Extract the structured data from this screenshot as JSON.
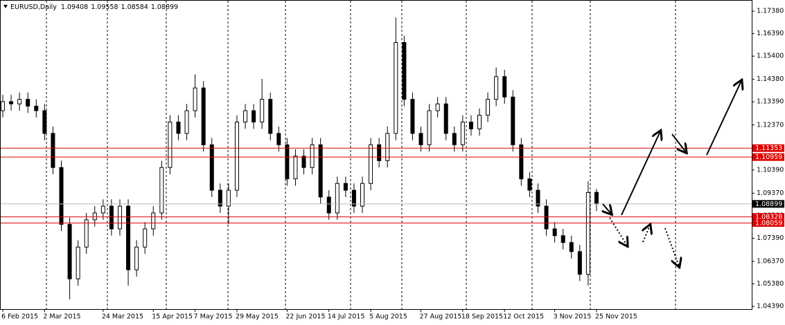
{
  "chart_data": {
    "type": "candlestick",
    "title": "EURUSD,Daily",
    "ylim": [
      1.0427,
      1.1787
    ],
    "yticks": [
      {
        "value": 1.1738,
        "label": "1.17380"
      },
      {
        "value": 1.1639,
        "label": "1.16390"
      },
      {
        "value": 1.154,
        "label": "1.15400"
      },
      {
        "value": 1.1438,
        "label": "1.14380"
      },
      {
        "value": 1.1339,
        "label": "1.13390"
      },
      {
        "value": 1.1237,
        "label": "1.12370"
      },
      {
        "value": 1.1138,
        "label": "1.11380"
      },
      {
        "value": 1.1039,
        "label": "1.10390"
      },
      {
        "value": 1.0937,
        "label": "1.09370"
      },
      {
        "value": 1.0838,
        "label": "1.08380"
      },
      {
        "value": 1.0739,
        "label": "1.07390"
      },
      {
        "value": 1.0637,
        "label": "1.06370"
      },
      {
        "value": 1.0538,
        "label": "1.05380"
      },
      {
        "value": 1.0439,
        "label": "1.04390"
      }
    ],
    "categories": [
      "6 Feb 2015",
      null,
      null,
      null,
      null,
      "2 Mar 2015",
      null,
      null,
      null,
      null,
      null,
      null,
      "24 Mar 2015",
      null,
      null,
      null,
      null,
      null,
      "15 Apr 2015",
      null,
      null,
      null,
      null,
      "7 May 2015",
      null,
      null,
      null,
      null,
      "29 May 2015",
      null,
      null,
      null,
      null,
      null,
      "22 Jun 2015",
      null,
      null,
      null,
      null,
      "14 Jul 2015",
      null,
      null,
      null,
      null,
      "5 Aug 2015",
      null,
      null,
      null,
      null,
      null,
      "27 Aug 2015",
      null,
      null,
      null,
      null,
      "18 Sep 2015",
      null,
      null,
      null,
      null,
      "12 Oct 2015",
      null,
      null,
      null,
      null,
      null,
      "3 Nov 2015",
      null,
      null,
      null,
      null,
      "25 Nov 2015"
    ],
    "open": [
      1.13,
      1.134,
      1.133,
      1.135,
      1.132,
      1.13,
      1.12,
      1.105,
      1.08,
      1.056,
      1.07,
      1.082,
      1.085,
      1.088,
      1.078,
      1.088,
      1.06,
      1.07,
      1.078,
      1.085,
      1.105,
      1.125,
      1.12,
      1.13,
      1.14,
      1.115,
      1.095,
      1.088,
      1.095,
      1.125,
      1.13,
      1.125,
      1.135,
      1.12,
      1.115,
      1.1,
      1.11,
      1.105,
      1.115,
      1.092,
      1.085,
      1.098,
      1.095,
      1.088,
      1.098,
      1.115,
      1.108,
      1.12,
      1.16,
      1.135,
      1.12,
      1.115,
      1.13,
      1.133,
      1.12,
      1.115,
      1.125,
      1.122,
      1.128,
      1.135,
      1.145,
      1.136,
      1.115,
      1.1,
      1.095,
      1.088,
      1.078,
      1.075,
      1.072,
      1.068,
      1.058,
      1.09408
    ],
    "high": [
      1.137,
      1.137,
      1.138,
      1.138,
      1.135,
      1.133,
      1.123,
      1.108,
      1.083,
      1.073,
      1.085,
      1.088,
      1.091,
      1.091,
      1.091,
      1.091,
      1.073,
      1.081,
      1.088,
      1.108,
      1.128,
      1.128,
      1.133,
      1.146,
      1.143,
      1.118,
      1.098,
      1.098,
      1.128,
      1.133,
      1.133,
      1.144,
      1.138,
      1.123,
      1.118,
      1.113,
      1.113,
      1.118,
      1.118,
      1.095,
      1.101,
      1.101,
      1.098,
      1.101,
      1.118,
      1.118,
      1.123,
      1.171,
      1.163,
      1.138,
      1.123,
      1.133,
      1.136,
      1.136,
      1.123,
      1.128,
      1.128,
      1.131,
      1.138,
      1.149,
      1.148,
      1.139,
      1.118,
      1.103,
      1.098,
      1.091,
      1.081,
      1.078,
      1.075,
      1.071,
      1.099,
      1.09558
    ],
    "low": [
      1.127,
      1.13,
      1.13,
      1.129,
      1.127,
      1.117,
      1.102,
      1.077,
      1.047,
      1.053,
      1.067,
      1.079,
      1.082,
      1.075,
      1.075,
      1.053,
      1.057,
      1.067,
      1.075,
      1.082,
      1.102,
      1.117,
      1.117,
      1.127,
      1.112,
      1.092,
      1.085,
      1.08,
      1.092,
      1.122,
      1.122,
      1.122,
      1.117,
      1.112,
      1.097,
      1.097,
      1.102,
      1.102,
      1.089,
      1.082,
      1.082,
      1.092,
      1.085,
      1.085,
      1.095,
      1.105,
      1.105,
      1.117,
      1.132,
      1.117,
      1.112,
      1.112,
      1.127,
      1.117,
      1.112,
      1.112,
      1.119,
      1.119,
      1.125,
      1.132,
      1.133,
      1.112,
      1.097,
      1.092,
      1.085,
      1.075,
      1.072,
      1.069,
      1.065,
      1.055,
      1.053,
      1.08584
    ],
    "close": [
      1.134,
      1.133,
      1.135,
      1.132,
      1.13,
      1.12,
      1.105,
      1.08,
      1.056,
      1.07,
      1.082,
      1.085,
      1.088,
      1.078,
      1.088,
      1.06,
      1.07,
      1.078,
      1.085,
      1.105,
      1.125,
      1.12,
      1.13,
      1.14,
      1.115,
      1.095,
      1.088,
      1.095,
      1.125,
      1.13,
      1.125,
      1.135,
      1.12,
      1.115,
      1.1,
      1.11,
      1.105,
      1.115,
      1.092,
      1.085,
      1.098,
      1.095,
      1.088,
      1.098,
      1.115,
      1.108,
      1.12,
      1.16,
      1.135,
      1.12,
      1.115,
      1.13,
      1.133,
      1.12,
      1.115,
      1.125,
      1.122,
      1.128,
      1.135,
      1.145,
      1.136,
      1.115,
      1.1,
      1.095,
      1.088,
      1.078,
      1.075,
      1.072,
      1.068,
      1.058,
      1.094,
      1.08899
    ],
    "levels": [
      {
        "value": 1.11353,
        "color": "#e00000"
      },
      {
        "value": 1.10959,
        "color": "#e00000"
      },
      {
        "value": 1.08899,
        "color": "#000000"
      },
      {
        "value": 1.08328,
        "color": "#e00000"
      },
      {
        "value": 1.08059,
        "color": "#e00000"
      }
    ]
  }
}
